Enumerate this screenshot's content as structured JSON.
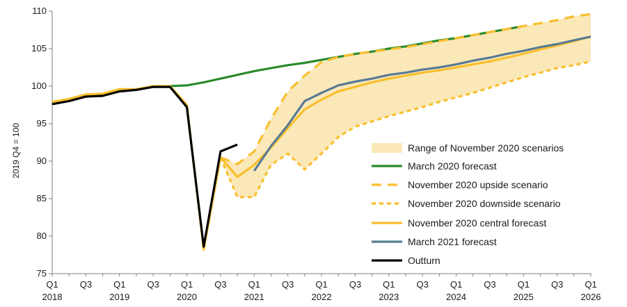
{
  "chart_data": {
    "type": "line",
    "ylabel": "2019 Q4 = 100",
    "ylim": [
      75,
      110
    ],
    "y_ticks": [
      "75",
      "80",
      "85",
      "90",
      "95",
      "100",
      "105",
      "110"
    ],
    "x_ticks": [
      {
        "q": "Q1",
        "year": "2018"
      },
      {
        "q": "Q3",
        "year": ""
      },
      {
        "q": "Q1",
        "year": "2019"
      },
      {
        "q": "Q3",
        "year": ""
      },
      {
        "q": "Q1",
        "year": "2020"
      },
      {
        "q": "Q3",
        "year": ""
      },
      {
        "q": "Q1",
        "year": "2021"
      },
      {
        "q": "Q3",
        "year": ""
      },
      {
        "q": "Q1",
        "year": "2022"
      },
      {
        "q": "Q3",
        "year": ""
      },
      {
        "q": "Q1",
        "year": "2023"
      },
      {
        "q": "Q3",
        "year": ""
      },
      {
        "q": "Q1",
        "year": "2024"
      },
      {
        "q": "Q3",
        "year": ""
      },
      {
        "q": "Q1",
        "year": "2025"
      },
      {
        "q": "Q3",
        "year": ""
      },
      {
        "q": "Q1",
        "year": "2026"
      }
    ],
    "x": [
      "2018 Q1",
      "2018 Q2",
      "2018 Q3",
      "2018 Q4",
      "2019 Q1",
      "2019 Q2",
      "2019 Q3",
      "2019 Q4",
      "2020 Q1",
      "2020 Q2",
      "2020 Q3",
      "2020 Q4",
      "2021 Q1",
      "2021 Q2",
      "2021 Q3",
      "2021 Q4",
      "2022 Q1",
      "2022 Q2",
      "2022 Q3",
      "2022 Q4",
      "2023 Q1",
      "2023 Q2",
      "2023 Q3",
      "2023 Q4",
      "2024 Q1",
      "2024 Q2",
      "2024 Q3",
      "2024 Q4",
      "2025 Q1",
      "2025 Q2",
      "2025 Q3",
      "2025 Q4",
      "2026 Q1"
    ],
    "legend_position": "bottom-right",
    "range_band": {
      "name": "Range of November 2020 scenarios",
      "color": "#fbe8b8",
      "upper": [
        null,
        null,
        null,
        null,
        null,
        null,
        null,
        null,
        null,
        null,
        90.5,
        89.6,
        91.3,
        95.6,
        99.3,
        101.4,
        103.2,
        103.9,
        104.3,
        104.6,
        104.9,
        105.2,
        105.6,
        106.0,
        106.4,
        106.8,
        107.2,
        107.6,
        108.0,
        108.4,
        108.8,
        109.3,
        109.6
      ],
      "lower": [
        null,
        null,
        null,
        null,
        null,
        null,
        null,
        null,
        null,
        null,
        90.5,
        85.2,
        85.2,
        89.5,
        91.0,
        88.9,
        91.0,
        93.2,
        94.6,
        95.3,
        96.0,
        96.6,
        97.2,
        97.9,
        98.5,
        99.1,
        99.8,
        100.5,
        101.2,
        101.8,
        102.4,
        102.8,
        103.3
      ]
    },
    "series": [
      {
        "name": "March 2020 forecast",
        "color": "#2a8a2a",
        "dash": "solid",
        "values": [
          97.7,
          98.1,
          98.7,
          98.9,
          99.4,
          99.6,
          99.9,
          100.0,
          100.1,
          100.5,
          101.0,
          101.5,
          102.0,
          102.4,
          102.8,
          103.1,
          103.5,
          103.9,
          104.3,
          104.6,
          105.0,
          105.3,
          105.7,
          106.1,
          106.4,
          106.8,
          107.2,
          107.6,
          108.0,
          null,
          null,
          null,
          null
        ]
      },
      {
        "name": "November 2020 upside scenario",
        "color": "#f9bf2c",
        "dash": "long",
        "values": [
          null,
          null,
          null,
          null,
          null,
          null,
          null,
          null,
          null,
          null,
          90.5,
          89.6,
          91.3,
          95.6,
          99.3,
          101.4,
          103.2,
          103.9,
          104.3,
          104.6,
          104.9,
          105.2,
          105.6,
          106.0,
          106.4,
          106.8,
          107.2,
          107.6,
          108.0,
          108.4,
          108.8,
          109.3,
          109.6
        ]
      },
      {
        "name": "November 2020 central forecast",
        "color": "#f9bf2c",
        "dash": "solid",
        "values": [
          97.9,
          98.3,
          98.9,
          99.0,
          99.6,
          99.6,
          100.0,
          100.0,
          97.5,
          78.2,
          90.5,
          87.9,
          89.5,
          91.8,
          94.4,
          96.9,
          98.2,
          99.3,
          99.9,
          100.5,
          101.0,
          101.4,
          101.8,
          102.1,
          102.5,
          102.9,
          103.3,
          103.8,
          104.3,
          104.9,
          105.4,
          106.0,
          106.6
        ]
      },
      {
        "name": "November 2020 downside scenario",
        "color": "#f9bf2c",
        "dash": "short",
        "values": [
          null,
          null,
          null,
          null,
          null,
          null,
          null,
          null,
          null,
          null,
          90.5,
          85.2,
          85.2,
          89.5,
          91.0,
          88.9,
          91.0,
          93.2,
          94.6,
          95.3,
          96.0,
          96.6,
          97.2,
          97.9,
          98.5,
          99.1,
          99.8,
          100.5,
          101.2,
          101.8,
          102.4,
          102.8,
          103.3
        ]
      },
      {
        "name": "March 2021 forecast",
        "color": "#587a93",
        "dash": "solid",
        "values": [
          null,
          null,
          null,
          null,
          null,
          null,
          null,
          null,
          null,
          null,
          null,
          null,
          88.7,
          92.0,
          94.8,
          98.0,
          99.1,
          100.1,
          100.6,
          101.0,
          101.5,
          101.8,
          102.2,
          102.5,
          102.9,
          103.4,
          103.8,
          104.3,
          104.7,
          105.2,
          105.6,
          106.1,
          106.6
        ]
      },
      {
        "name": "Outturn",
        "color": "#000000",
        "dash": "solid",
        "values": [
          97.6,
          98.0,
          98.6,
          98.7,
          99.3,
          99.5,
          99.9,
          99.9,
          97.2,
          78.6,
          91.3,
          92.2,
          null,
          null,
          null,
          null,
          null,
          null,
          null,
          null,
          null,
          null,
          null,
          null,
          null,
          null,
          null,
          null,
          null,
          null,
          null,
          null,
          null
        ]
      }
    ]
  }
}
